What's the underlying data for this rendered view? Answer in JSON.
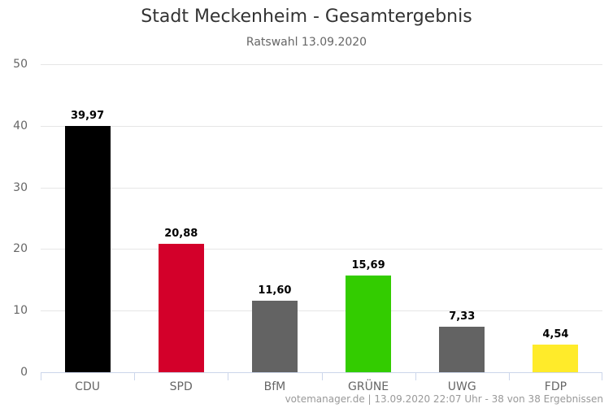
{
  "chart": {
    "title": "Stadt Meckenheim - Gesamtergebnis",
    "subtitle": "Ratswahl 13.09.2020",
    "credits": "votemanager.de | 13.09.2020 22:07 Uhr - 38 von 38 Ergebnissen"
  },
  "chart_data": {
    "type": "bar",
    "title": "Stadt Meckenheim - Gesamtergebnis",
    "subtitle": "Ratswahl 13.09.2020",
    "categories": [
      "CDU",
      "SPD",
      "BfM",
      "GRÜNE",
      "UWG",
      "FDP"
    ],
    "values": [
      39.97,
      20.88,
      11.6,
      15.69,
      7.33,
      4.54
    ],
    "value_labels": [
      "39,97",
      "20,88",
      "11,60",
      "15,69",
      "7,33",
      "4,54"
    ],
    "colors": [
      "#000000",
      "#d3002a",
      "#636363",
      "#33cc00",
      "#636363",
      "#ffeb2a"
    ],
    "xlabel": "",
    "ylabel": "",
    "ylim": [
      0,
      50
    ],
    "yticks": [
      0,
      10,
      20,
      30,
      40,
      50
    ],
    "grid": true,
    "legend": false
  }
}
